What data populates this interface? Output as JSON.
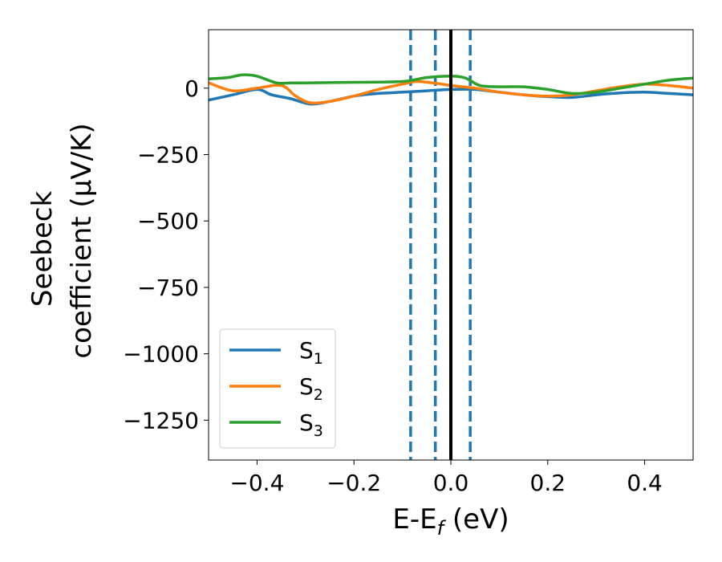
{
  "chart_data": {
    "type": "line",
    "title": "",
    "xlabel": "E-E$_f$ (eV)",
    "xlabel_parts": {
      "main": "E-E",
      "sub": "f",
      "tail": " (eV)"
    },
    "ylabel_line1": "Seebeck",
    "ylabel_line2": "coefficient  (μV/K)",
    "xlim": [
      -0.5,
      0.5
    ],
    "ylim": [
      -1400,
      220
    ],
    "xticks": [
      -0.4,
      -0.2,
      0.0,
      0.2,
      0.4
    ],
    "xtick_labels": [
      "−0.4",
      "−0.2",
      "0.0",
      "0.2",
      "0.4"
    ],
    "yticks": [
      0,
      -250,
      -500,
      -750,
      -1000,
      -1250
    ],
    "ytick_labels": [
      "0",
      "−250",
      "−500",
      "−750",
      "−1000",
      "−1250"
    ],
    "grid": false,
    "legend_position": "lower-left",
    "vlines": [
      {
        "x": -0.083,
        "style": "dashed",
        "color": "#1f77b4"
      },
      {
        "x": -0.032,
        "style": "dashed",
        "color": "#1f77b4"
      },
      {
        "x": 0.0,
        "style": "solid",
        "color": "#000000"
      },
      {
        "x": 0.04,
        "style": "dashed",
        "color": "#1f77b4"
      }
    ],
    "series": [
      {
        "name": "S1",
        "label_main": "S",
        "label_sub": "1",
        "color": "#1f77b4",
        "x": [
          -0.5,
          -0.45,
          -0.4,
          -0.37,
          -0.33,
          -0.29,
          -0.25,
          -0.2,
          -0.15,
          -0.1,
          -0.05,
          0.0,
          0.05,
          0.1,
          0.15,
          0.2,
          0.25,
          0.3,
          0.35,
          0.4,
          0.45,
          0.5
        ],
        "values": [
          -45,
          -25,
          -5,
          -25,
          -40,
          -60,
          -50,
          -30,
          -20,
          -15,
          -10,
          -5,
          -5,
          -15,
          -25,
          -32,
          -35,
          -25,
          -18,
          -15,
          -20,
          -25
        ]
      },
      {
        "name": "S2",
        "label_main": "S",
        "label_sub": "2",
        "color": "#ff7f0e",
        "x": [
          -0.5,
          -0.45,
          -0.4,
          -0.35,
          -0.32,
          -0.29,
          -0.25,
          -0.2,
          -0.15,
          -0.1,
          -0.07,
          -0.03,
          0.0,
          0.05,
          0.1,
          0.15,
          0.2,
          0.25,
          0.3,
          0.35,
          0.4,
          0.45,
          0.5
        ],
        "values": [
          20,
          -10,
          0,
          10,
          -30,
          -55,
          -50,
          -30,
          -5,
          15,
          25,
          18,
          10,
          0,
          -15,
          -25,
          -30,
          -25,
          -10,
          5,
          15,
          10,
          0
        ]
      },
      {
        "name": "S3",
        "label_main": "S",
        "label_sub": "3",
        "color": "#2ca02c",
        "x": [
          -0.5,
          -0.46,
          -0.43,
          -0.4,
          -0.36,
          -0.33,
          -0.3,
          -0.2,
          -0.1,
          -0.05,
          0.0,
          0.03,
          0.06,
          0.1,
          0.15,
          0.2,
          0.25,
          0.3,
          0.35,
          0.4,
          0.45,
          0.5
        ],
        "values": [
          35,
          40,
          50,
          45,
          20,
          20,
          20,
          22,
          25,
          40,
          45,
          38,
          10,
          5,
          5,
          -5,
          -20,
          -15,
          0,
          15,
          30,
          38
        ]
      }
    ]
  }
}
